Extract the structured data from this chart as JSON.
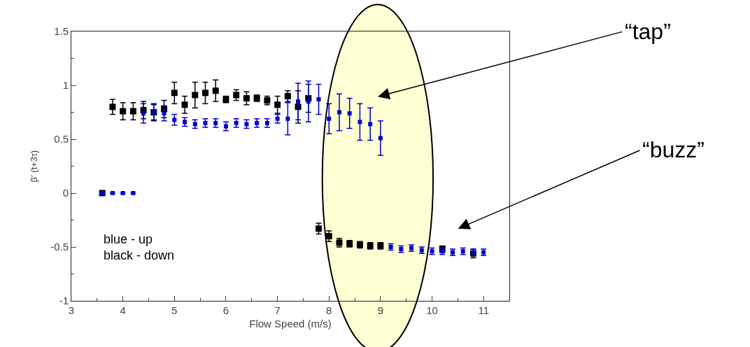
{
  "chart_data": {
    "type": "scatter",
    "xlabel": "Flow Speed (m/s)",
    "ylabel": "β′ (t+3τ)",
    "xlim": [
      3,
      11.5
    ],
    "xticks": [
      3,
      4,
      5,
      6,
      7,
      8,
      9,
      10,
      11
    ],
    "ylim": [
      -1,
      1.5
    ],
    "yticks": [
      -1,
      -0.5,
      0,
      0.5,
      1,
      1.5
    ],
    "grid": false,
    "marker": "square",
    "series": [
      {
        "color": "#000000",
        "x": [
          3.6,
          3.8,
          4.0,
          4.2,
          4.4,
          4.6,
          4.8,
          5.0,
          5.2,
          5.4,
          5.6,
          5.8,
          6.0,
          6.2,
          6.4,
          6.6,
          6.8,
          7.0,
          7.2,
          7.4,
          7.6,
          7.8,
          8.0,
          8.2,
          8.4,
          8.6,
          8.8,
          9.0,
          9.2,
          9.4,
          9.6,
          9.8,
          10.0,
          10.2,
          10.4,
          10.6,
          10.8
        ],
        "values": [
          0,
          0.8,
          0.76,
          0.76,
          0.77,
          0.75,
          0.78,
          0.93,
          0.82,
          0.91,
          0.93,
          0.95,
          0.87,
          0.91,
          0.88,
          0.88,
          0.86,
          0.82,
          0.9,
          0.8,
          0.88,
          -0.33,
          -0.4,
          -0.46,
          -0.47,
          -0.48,
          -0.49,
          -0.49,
          null,
          null,
          null,
          null,
          null,
          -0.52,
          null,
          null,
          -0.56
        ],
        "errors": [
          null,
          0.07,
          0.08,
          0.08,
          0.08,
          0.08,
          0.08,
          0.1,
          0.08,
          0.12,
          0.1,
          0.1,
          0.03,
          0.05,
          0.06,
          0.03,
          0.04,
          0.08,
          0.05,
          0.15,
          0.13,
          0.05,
          0.05,
          0.04,
          0.03,
          0.03,
          0.03,
          0.03,
          null,
          null,
          null,
          null,
          null,
          0.03,
          null,
          null,
          0.04
        ]
      },
      {
        "color": "#0000cc",
        "x": [
          3.6,
          3.8,
          4.0,
          4.2,
          4.4,
          4.6,
          4.8,
          5.0,
          5.2,
          5.4,
          5.6,
          5.8,
          6.0,
          6.2,
          6.4,
          6.6,
          6.8,
          7.0,
          7.2,
          7.4,
          7.6,
          7.8,
          8.0,
          8.2,
          8.4,
          8.6,
          8.8,
          9.0,
          9.2,
          9.4,
          9.6,
          9.8,
          10.0,
          10.2,
          10.4,
          10.6,
          10.8,
          11.0
        ],
        "values": [
          0,
          0,
          0,
          0,
          0.74,
          0.75,
          0.74,
          0.68,
          0.66,
          0.64,
          0.65,
          0.65,
          0.62,
          0.65,
          0.64,
          0.65,
          0.65,
          0.69,
          0.69,
          0.85,
          0.85,
          0.87,
          0.69,
          0.75,
          0.74,
          0.66,
          0.64,
          0.51,
          -0.5,
          -0.52,
          -0.51,
          -0.53,
          -0.54,
          -0.54,
          -0.55,
          -0.54,
          -0.55,
          -0.55
        ],
        "errors": [
          null,
          null,
          null,
          null,
          0.09,
          0.07,
          0.07,
          0.05,
          0.04,
          0.04,
          0.04,
          0.04,
          0.04,
          0.04,
          0.04,
          0.04,
          0.04,
          0.04,
          0.15,
          0.17,
          0.19,
          0.14,
          0.14,
          0.17,
          0.14,
          0.17,
          0.15,
          0.16,
          0.03,
          0.03,
          0.03,
          0.03,
          0.03,
          0.03,
          0.03,
          0.03,
          0.03,
          0.03
        ]
      }
    ],
    "annotations": [
      "“tap”",
      "“buzz”",
      "blue - up\nblack - down"
    ]
  }
}
